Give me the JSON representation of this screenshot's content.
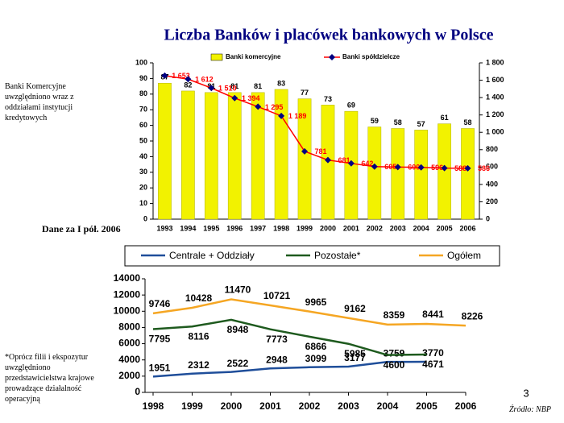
{
  "title": "Liczba Banków i placówek bankowych w Polsce",
  "note_top": "Banki Komercyjne uwzględniono wraz z oddziałami instytucji kredytowych",
  "note_period": "Dane za I pół. 2006",
  "note_bottom": "*Oprócz filii i ekspozytur uwzględniono przedstawicielstwa krajowe prowadzące działalność operacyjną",
  "page_number": "3",
  "source": "Źródło: NBP",
  "chart_data": [
    {
      "type": "bar",
      "categories": [
        "1993",
        "1994",
        "1995",
        "1996",
        "1997",
        "1998",
        "1999",
        "2000",
        "2001",
        "2002",
        "2003",
        "2004",
        "2005",
        "2006"
      ],
      "series": [
        {
          "name": "Banki komercyjne",
          "color": "#f2f200",
          "values": [
            87,
            82,
            81,
            81,
            81,
            83,
            77,
            73,
            69,
            59,
            58,
            57,
            61,
            58
          ]
        },
        {
          "name": "Banki spółdzielcze",
          "type": "line",
          "axis": "y2",
          "color": "#ff0000",
          "marker_color": "#000080",
          "values": [
            1653,
            1612,
            1510,
            1394,
            1295,
            1189,
            781,
            681,
            642,
            605,
            600,
            596,
            588,
            586
          ],
          "value_labels": [
            "1 653",
            "1 612",
            "1 510",
            "1 394",
            "1 295",
            "1 189",
            "781",
            "681",
            "642",
            "605",
            "600",
            "596",
            "588",
            "586"
          ]
        }
      ],
      "ylim": [
        0,
        100
      ],
      "yticks": [
        0,
        10,
        20,
        30,
        40,
        50,
        60,
        70,
        80,
        90,
        100
      ],
      "y2lim": [
        0,
        1800
      ],
      "y2ticks": [
        0,
        200,
        400,
        600,
        800,
        {
          "value": 1000,
          "label": "1 000"
        },
        {
          "value": 1200,
          "label": "1 200"
        },
        {
          "value": 1400,
          "label": "1 400"
        },
        {
          "value": 1600,
          "label": "1 600"
        },
        {
          "value": 1800,
          "label": "1 800"
        }
      ],
      "legend": "top"
    },
    {
      "type": "line",
      "x": [
        1998,
        1999,
        2000,
        2001,
        2002,
        2003,
        2004,
        2005,
        2006
      ],
      "series": [
        {
          "name": "Centrale + Oddziały",
          "color": "#1f4e9a",
          "values": [
            1951,
            2312,
            2522,
            2948,
            3099,
            3177,
            3759,
            3770,
            null
          ]
        },
        {
          "name": "Pozostałe*",
          "color": "#1e5a1e",
          "values": [
            7795,
            8116,
            8948,
            7773,
            6866,
            5985,
            4600,
            4671,
            null
          ]
        },
        {
          "name": "Ogółem",
          "color": "#f5a623",
          "values": [
            9746,
            10428,
            11470,
            10721,
            9965,
            9162,
            8359,
            8441,
            8226
          ]
        }
      ],
      "xlim": [
        1998,
        2006
      ],
      "xticks": [
        1998,
        1999,
        2000,
        2001,
        2002,
        2003,
        2004,
        2005,
        2006
      ],
      "ylim": [
        0,
        14000
      ],
      "yticks": [
        0,
        2000,
        4000,
        6000,
        8000,
        10000,
        12000,
        14000
      ],
      "legend": "top"
    }
  ]
}
